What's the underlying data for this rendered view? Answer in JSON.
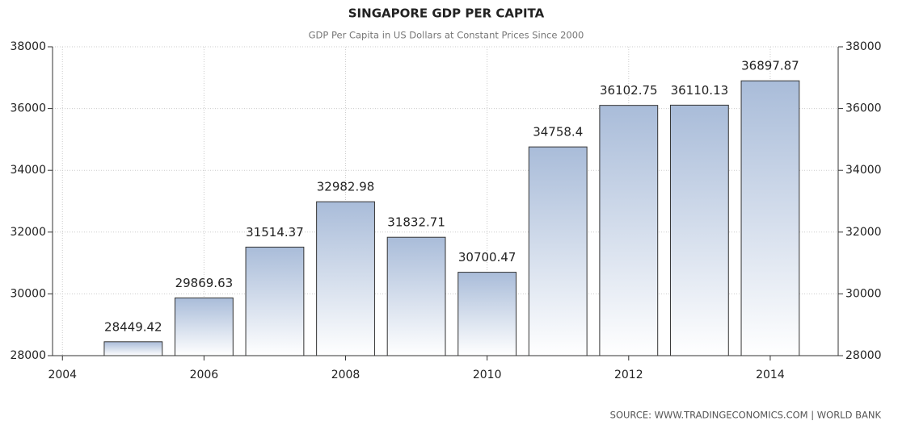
{
  "chart_data": {
    "type": "bar",
    "title": "SINGAPORE GDP PER CAPITA",
    "subtitle": "GDP Per Capita in US Dollars at Constant Prices Since 2000",
    "source": "SOURCE: WWW.TRADINGECONOMICS.COM | WORLD BANK",
    "x": [
      2005,
      2006,
      2007,
      2008,
      2009,
      2010,
      2011,
      2012,
      2013,
      2014
    ],
    "values": [
      28449.42,
      29869.63,
      31514.37,
      32982.98,
      31832.71,
      30700.47,
      34758.4,
      36102.75,
      36110.13,
      36897.87
    ],
    "color": "#a9bcd9",
    "xlim": [
      2003.86,
      2014.96
    ],
    "xticks": [
      2004,
      2006,
      2008,
      2010,
      2012,
      2014
    ],
    "ylim": [
      28000,
      38000
    ],
    "yticks": [
      28000,
      30000,
      32000,
      34000,
      36000,
      38000
    ],
    "grid": true
  }
}
